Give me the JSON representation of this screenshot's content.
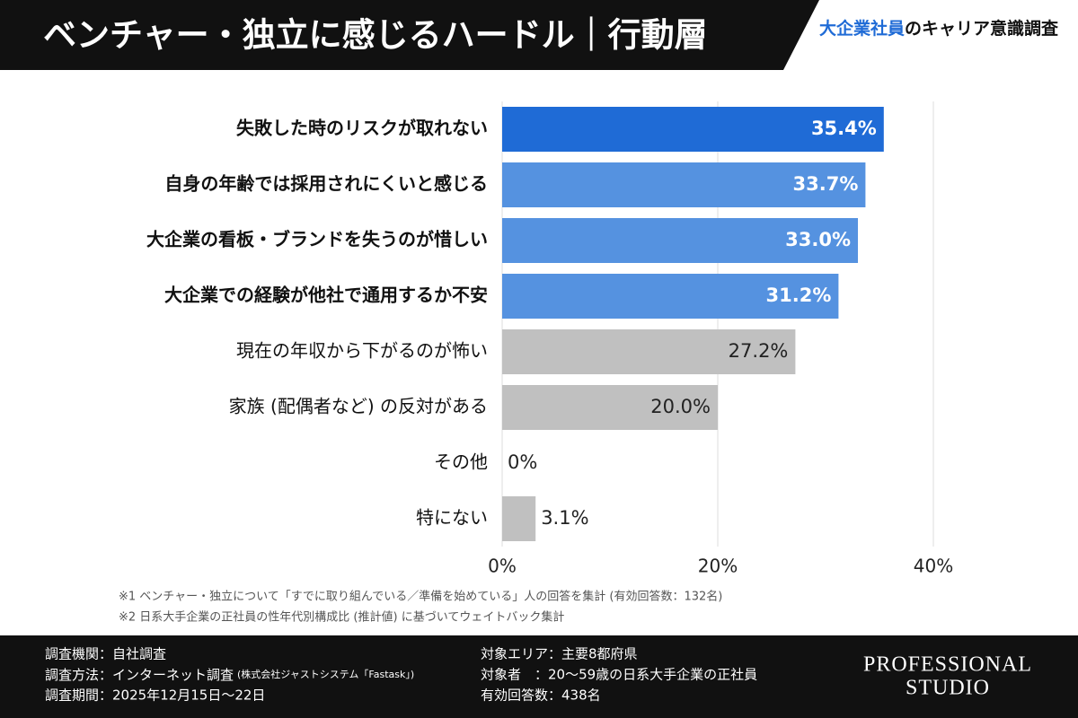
{
  "header": {
    "title": "ベンチャー・独立に感じるハードル｜行動層",
    "brand_highlight": "大企業社員",
    "brand_rest": "のキャリア意識調査"
  },
  "chart_data": {
    "type": "bar",
    "orientation": "horizontal",
    "categories": [
      "失敗した時のリスクが取れない",
      "自身の年齢では採用されにくいと感じる",
      "大企業の看板・ブランドを失うのが惜しい",
      "大企業での経験が他社で通用するか不安",
      "現在の年収から下がるのが怖い",
      "家族 (配偶者など) の反対がある",
      "その他",
      "特にない"
    ],
    "values": [
      35.4,
      33.7,
      33.0,
      31.2,
      27.2,
      20.0,
      0,
      3.1
    ],
    "value_labels": [
      "35.4%",
      "33.7%",
      "33.0%",
      "31.2%",
      "27.2%",
      "20.0%",
      "0%",
      "3.1%"
    ],
    "colors": [
      "#1f6bd6",
      "#5592e0",
      "#5592e0",
      "#5592e0",
      "#c0c0c0",
      "#c0c0c0",
      "#c0c0c0",
      "#c0c0c0"
    ],
    "xlim": [
      0,
      40
    ],
    "xticks": [
      {
        "value": 0,
        "label": "0%"
      },
      {
        "value": 20,
        "label": "20%"
      },
      {
        "value": 40,
        "label": "40%"
      }
    ],
    "grid": true
  },
  "notes": [
    "※1 ベンチャー・独立について「すでに取り組んでいる／準備を始めている」人の回答を集計 (有効回答数：132名)",
    "※2 日系大手企業の正社員の性年代別構成比 (推計値) に基づいてウェイトバック集計"
  ],
  "footer": {
    "left": [
      "調査機関：自社調査",
      "調査方法：インターネット調査",
      "調査期間：2025年12月15日〜22日"
    ],
    "method_note": "(株式会社ジャストシステム「Fastask」)",
    "right": [
      "対象エリア：主要8都府県",
      "対象者　：20〜59歳の日系大手企業の正社員",
      "有効回答数：438名"
    ],
    "logo": [
      "PROFESSIONAL",
      "STUDIO"
    ]
  }
}
